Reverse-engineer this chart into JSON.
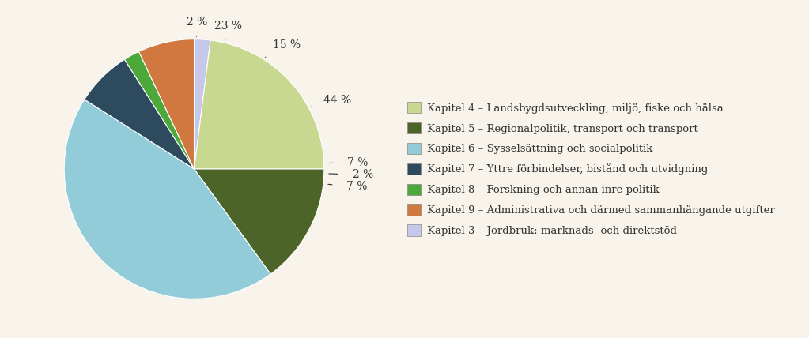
{
  "slices": [
    2,
    23,
    15,
    44,
    7,
    2,
    7
  ],
  "colors": [
    "#c5c8e8",
    "#c8d890",
    "#4d6428",
    "#92ccd8",
    "#2d4a5e",
    "#4da83a",
    "#d07840"
  ],
  "labels": [
    "Kapitel 3 – Jordbruk: marknads- och direktstöd",
    "Kapitel 4 – Landsbygdsutveckling, miljö, fiske och hälsa",
    "Kapitel 5 – Regionalpolitik, transport och transport",
    "Kapitel 6 – Sysselsättning och socialpolitik",
    "Kapitel 7 – Yttre förbindelser, bistånd och utvidgning",
    "Kapitel 8 – Forskning och annan inre politik",
    "Kapitel 9 – Administrativa och därmed sammanhängande utgifter"
  ],
  "legend_order": [
    1,
    2,
    3,
    4,
    5,
    6,
    0
  ],
  "pct_labels": [
    "2 %",
    "23 %",
    "15 %",
    "44 %",
    "7 %",
    "2 %",
    "7 %"
  ],
  "background_color": "#f8f4ec",
  "legend_fontsize": 9.5,
  "pct_fontsize": 10,
  "label_radius": [
    1.13,
    1.13,
    1.13,
    1.13,
    1.18,
    1.22,
    1.18
  ]
}
